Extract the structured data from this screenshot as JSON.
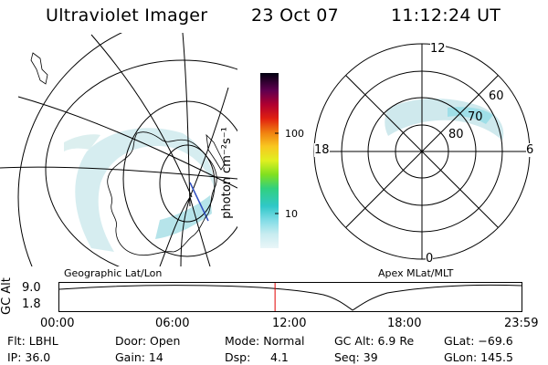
{
  "header": {
    "title": "Ultraviolet Imager",
    "date": "23 Oct 07",
    "time": "11:12:24 UT"
  },
  "left_panel": {
    "caption": "Geographic Lat/Lon",
    "view": "geographic map projection with lat/lon grid, coastlines and auroral oval"
  },
  "colorbar": {
    "unit_label": "photon cm⁻²s⁻¹",
    "ticks": [
      "100",
      "10"
    ],
    "scale": "log",
    "colors": [
      "#d8eef2",
      "#8ae0e8",
      "#40c8d0",
      "#2fd08a",
      "#90e020",
      "#e8f020",
      "#f8c020",
      "#f07010",
      "#d81010",
      "#b8003a",
      "#4a0040",
      "#000000"
    ]
  },
  "right_panel": {
    "caption": "Apex MLat/MLT",
    "mlt_labels": {
      "top": "12",
      "left": "18",
      "right": "6",
      "bottom": "0"
    },
    "lat_labels": [
      "60",
      "70",
      "80"
    ]
  },
  "altitude_plot": {
    "ylabel": "GC Alt",
    "yticks": [
      "9.0",
      "1.8"
    ],
    "xticks": [
      "00:00",
      "06:00",
      "12:00",
      "18:00",
      "23:59"
    ],
    "current_time_marker_hours": 11.2,
    "marker_color": "#e00000"
  },
  "info": {
    "row1": {
      "filter": "Flt: LBHL",
      "door": "Door: Open",
      "mode": "Mode: Normal",
      "gc_alt": "GC Alt: 6.9 Re",
      "glat": "GLat: −69.6"
    },
    "row2": {
      "ip": "IP: 36.0",
      "gain": "Gain: 14",
      "dsp_label": "Dsp:",
      "dsp_value": "4.1",
      "seq": "Seq: 39",
      "glon": "GLon: 145.5"
    }
  }
}
